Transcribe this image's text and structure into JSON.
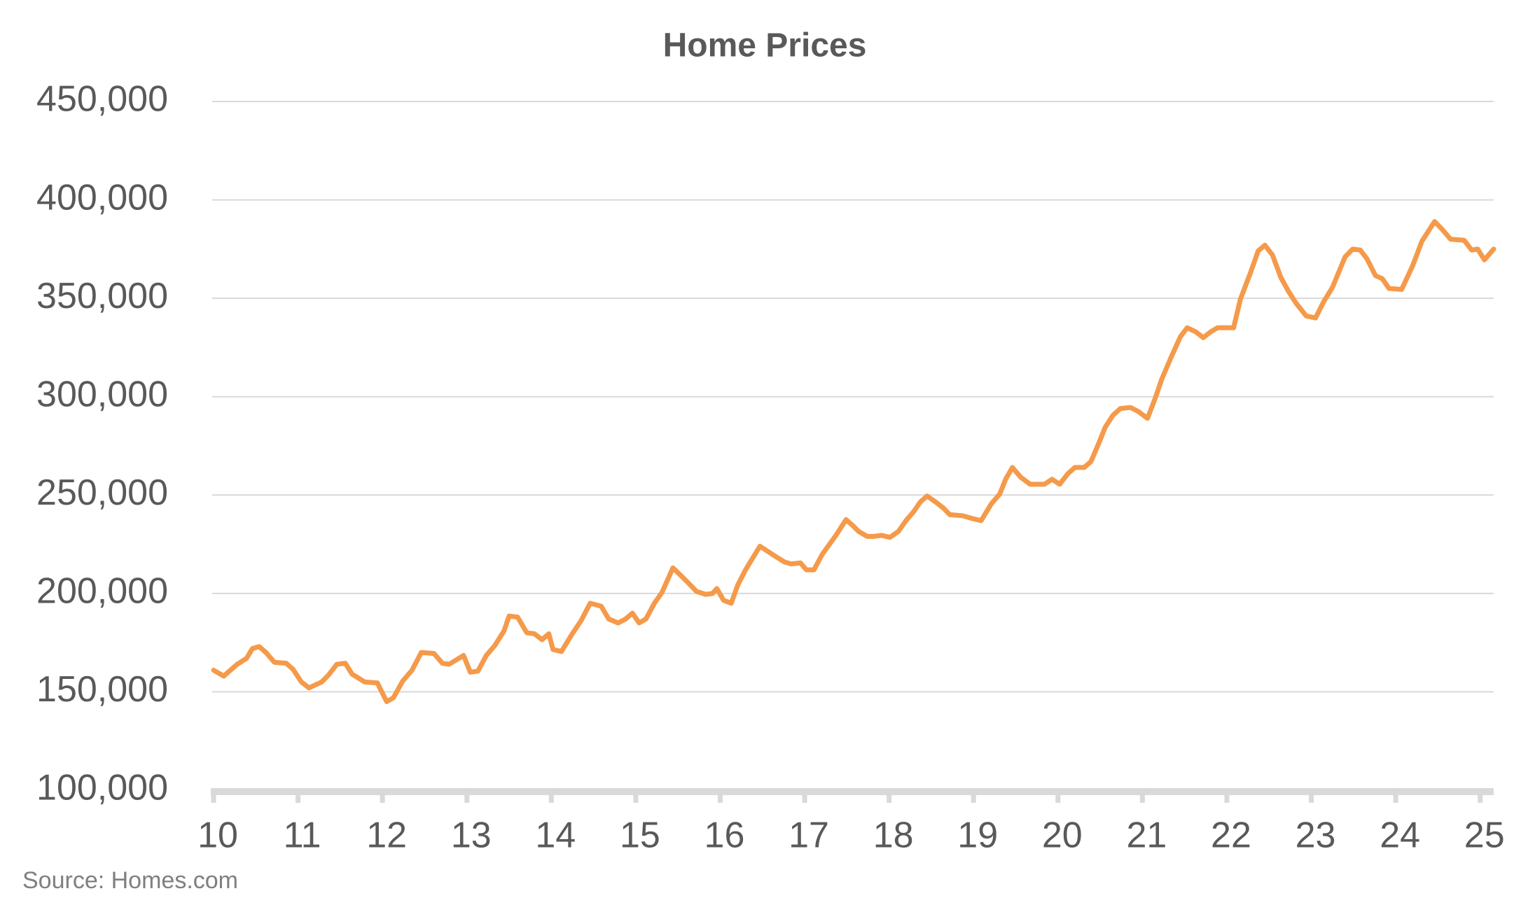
{
  "chart_data": {
    "type": "line",
    "title": "Home Prices",
    "source": "Source: Homes.com",
    "color": "#f59a4a",
    "grid": true,
    "xlim": [
      10,
      25.16
    ],
    "xticks": [
      10,
      11,
      12,
      13,
      14,
      15,
      16,
      17,
      18,
      19,
      20,
      21,
      22,
      23,
      24,
      25
    ],
    "ylim": [
      100000,
      450000
    ],
    "yticks": [
      {
        "value": 100000,
        "label": "100,000"
      },
      {
        "value": 150000,
        "label": "150,000"
      },
      {
        "value": 200000,
        "label": "200,000"
      },
      {
        "value": 250000,
        "label": "250,000"
      },
      {
        "value": 300000,
        "label": "300,000"
      },
      {
        "value": 350000,
        "label": "350,000"
      },
      {
        "value": 400000,
        "label": "400,000"
      },
      {
        "value": 450000,
        "label": "450,000"
      }
    ],
    "x": [
      10.0,
      10.12,
      10.28,
      10.39,
      10.46,
      10.54,
      10.62,
      10.72,
      10.86,
      10.94,
      11.04,
      11.13,
      11.28,
      11.36,
      11.46,
      11.56,
      11.64,
      11.79,
      11.94,
      12.05,
      12.13,
      12.24,
      12.35,
      12.46,
      12.61,
      12.71,
      12.79,
      12.96,
      13.04,
      13.13,
      13.23,
      13.33,
      13.44,
      13.5,
      13.6,
      13.71,
      13.8,
      13.89,
      13.97,
      14.02,
      14.12,
      14.24,
      14.35,
      14.46,
      14.59,
      14.68,
      14.79,
      14.88,
      14.96,
      15.04,
      15.12,
      15.22,
      15.31,
      15.44,
      15.56,
      15.63,
      15.72,
      15.83,
      15.91,
      15.96,
      16.04,
      16.13,
      16.21,
      16.3,
      16.47,
      16.63,
      16.76,
      16.84,
      16.95,
      17.02,
      17.11,
      17.21,
      17.37,
      17.49,
      17.57,
      17.64,
      17.74,
      17.82,
      17.91,
      18.01,
      18.11,
      18.2,
      18.29,
      18.37,
      18.45,
      18.55,
      18.64,
      18.72,
      18.87,
      18.99,
      19.09,
      19.21,
      19.31,
      19.38,
      19.46,
      19.56,
      19.67,
      19.84,
      19.93,
      20.02,
      20.12,
      20.2,
      20.31,
      20.39,
      20.48,
      20.56,
      20.65,
      20.74,
      20.86,
      20.95,
      21.06,
      21.15,
      21.23,
      21.35,
      21.45,
      21.53,
      21.63,
      21.72,
      21.81,
      21.89,
      22.0,
      22.08,
      22.16,
      22.28,
      22.37,
      22.45,
      22.54,
      22.64,
      22.73,
      22.82,
      22.94,
      23.05,
      23.15,
      23.25,
      23.4,
      23.49,
      23.58,
      23.66,
      23.76,
      23.84,
      23.92,
      24.07,
      24.2,
      24.31,
      24.46,
      24.55,
      24.65,
      24.81,
      24.9,
      24.97,
      25.05,
      25.16
    ],
    "values": [
      161000,
      158000,
      164000,
      167000,
      172000,
      173000,
      170000,
      165000,
      164500,
      161500,
      155000,
      152000,
      155000,
      158500,
      164000,
      164500,
      159000,
      155000,
      154500,
      145000,
      147000,
      155500,
      161000,
      170000,
      169500,
      164500,
      164000,
      168500,
      160000,
      160500,
      168500,
      173500,
      181000,
      188500,
      188000,
      180000,
      179500,
      176500,
      179500,
      171500,
      170500,
      179000,
      186000,
      195000,
      193500,
      187000,
      185000,
      187000,
      190000,
      185000,
      187000,
      195000,
      200500,
      213000,
      208000,
      205000,
      201000,
      199500,
      200000,
      202500,
      196500,
      195000,
      204500,
      212000,
      224000,
      219500,
      216000,
      215000,
      215500,
      212000,
      212000,
      220000,
      229500,
      237500,
      234500,
      231500,
      229000,
      229000,
      229500,
      228500,
      231500,
      237000,
      241500,
      246500,
      249500,
      246500,
      243500,
      240000,
      239500,
      238000,
      237000,
      245500,
      250500,
      258000,
      264000,
      259000,
      255500,
      255500,
      258000,
      255500,
      261000,
      264000,
      264000,
      267000,
      276000,
      284500,
      290500,
      294000,
      294500,
      292500,
      289000,
      299000,
      309000,
      321000,
      330500,
      335000,
      333000,
      330000,
      333000,
      335000,
      335000,
      335000,
      349500,
      363000,
      374000,
      377000,
      372000,
      360500,
      353500,
      347500,
      341000,
      340000,
      348500,
      355500,
      371000,
      375000,
      374500,
      370000,
      361500,
      360000,
      355000,
      354500,
      366500,
      379000,
      389000,
      385000,
      380000,
      379500,
      374500,
      375000,
      369500,
      375000
    ]
  }
}
